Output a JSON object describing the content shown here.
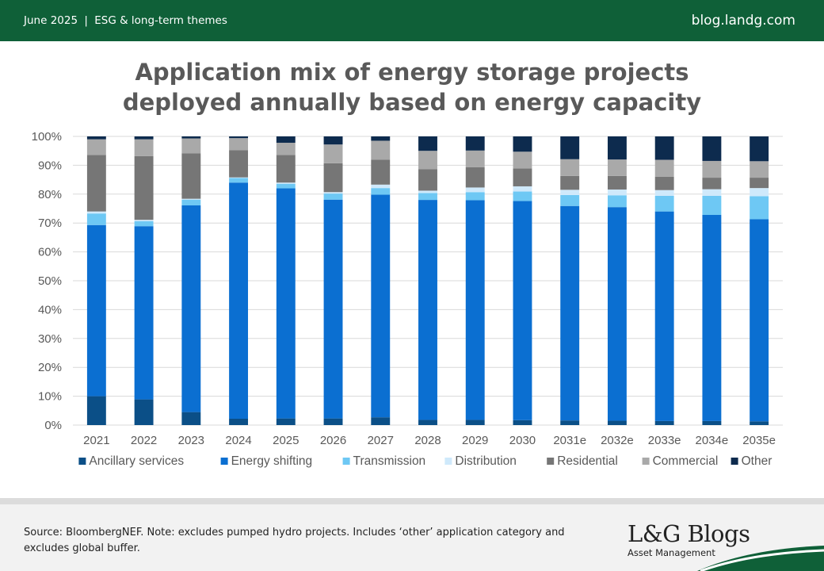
{
  "header": {
    "date": "June 2025",
    "separator": "|",
    "theme": "ESG & long-term themes",
    "site": "blog.landg.com"
  },
  "title_line1": "Application mix of energy storage projects",
  "title_line2": "deployed annually based on energy capacity",
  "footer": {
    "source": "Source: BloombergNEF. Note: excludes pumped hydro projects. Includes ‘other’ application category and excludes global buffer.",
    "logo_text": "L&G Blogs",
    "logo_subtitle": "Asset Management"
  },
  "colors": {
    "brand_green": "#0f6038",
    "footer_bg": "#f2f2f2"
  },
  "chart_data": {
    "type": "bar",
    "stacked": true,
    "title": "Application mix of energy storage projects deployed annually based on energy capacity",
    "categories": [
      "2021",
      "2022",
      "2023",
      "2024",
      "2025",
      "2026",
      "2027",
      "2028",
      "2029",
      "2030",
      "2031e",
      "2032e",
      "2033e",
      "2034e",
      "2035e"
    ],
    "ylim": [
      0,
      100
    ],
    "yticks": [
      "0%",
      "10%",
      "20%",
      "30%",
      "40%",
      "50%",
      "60%",
      "70%",
      "80%",
      "90%",
      "100%"
    ],
    "grid": true,
    "legend": "bottom",
    "series": [
      {
        "name": "Ancillary services",
        "color": "#0b4f87",
        "values": [
          10,
          8.9,
          4.5,
          2.2,
          2.3,
          2.3,
          2.7,
          1.8,
          1.8,
          1.7,
          1.6,
          1.5,
          1.4,
          1.4,
          1.3
        ]
      },
      {
        "name": "Energy shifting",
        "color": "#0b6fd1",
        "values": [
          59.3,
          60,
          71.6,
          81.8,
          79.7,
          75.8,
          77.1,
          76.2,
          76.1,
          75.9,
          74.3,
          74,
          72.6,
          71.4,
          70
        ]
      },
      {
        "name": "Transmission",
        "color": "#6ec8f4",
        "values": [
          4,
          1.7,
          2,
          1.6,
          1.6,
          2.1,
          2.3,
          2.4,
          2.8,
          3.3,
          3.8,
          4.1,
          5.4,
          6.6,
          8
        ]
      },
      {
        "name": "Distribution",
        "color": "#cfe9fb",
        "values": [
          0.7,
          0.5,
          0.3,
          0.2,
          0.4,
          0.5,
          1.2,
          0.8,
          1.6,
          1.8,
          1.8,
          2,
          2,
          2.3,
          2.8
        ]
      },
      {
        "name": "Residential",
        "color": "#767676",
        "values": [
          19.6,
          22.1,
          15.7,
          9.4,
          9.6,
          10,
          8.6,
          7.4,
          7,
          6.2,
          4.8,
          4.7,
          4.6,
          4,
          3.6
        ]
      },
      {
        "name": "Commercial",
        "color": "#a9a9a9",
        "values": [
          5.4,
          5.8,
          5.2,
          4.2,
          4.2,
          6.5,
          6.6,
          6.4,
          5.8,
          5.8,
          5.8,
          5.7,
          5.9,
          5.8,
          5.7
        ]
      },
      {
        "name": "Other",
        "color": "#0d2b4e",
        "values": [
          1,
          1,
          0.7,
          0.6,
          2.2,
          2.8,
          1.5,
          5,
          4.9,
          5.3,
          7.9,
          8,
          8.1,
          8.5,
          8.6
        ]
      }
    ]
  }
}
